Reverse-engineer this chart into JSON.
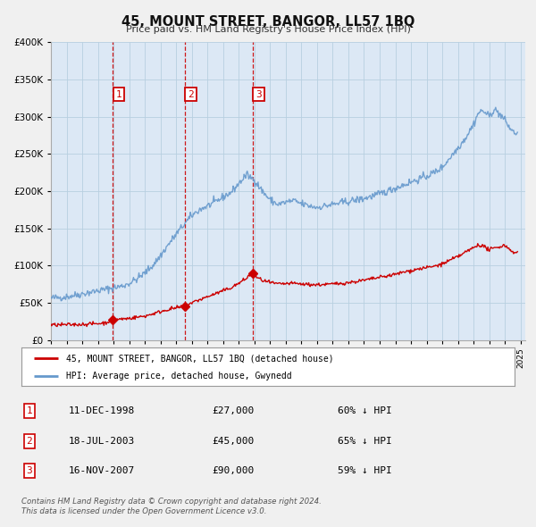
{
  "title": "45, MOUNT STREET, BANGOR, LL57 1BQ",
  "subtitle": "Price paid vs. HM Land Registry's House Price Index (HPI)",
  "legend_label_red": "45, MOUNT STREET, BANGOR, LL57 1BQ (detached house)",
  "legend_label_blue": "HPI: Average price, detached house, Gwynedd",
  "footer1": "Contains HM Land Registry data © Crown copyright and database right 2024.",
  "footer2": "This data is licensed under the Open Government Licence v3.0.",
  "ylim": [
    0,
    400000
  ],
  "ytick_values": [
    0,
    50000,
    100000,
    150000,
    200000,
    250000,
    300000,
    350000,
    400000
  ],
  "sale_points": [
    {
      "date_num": 1998.94,
      "price": 27000,
      "label": "1"
    },
    {
      "date_num": 2003.54,
      "price": 45000,
      "label": "2"
    },
    {
      "date_num": 2007.88,
      "price": 90000,
      "label": "3"
    }
  ],
  "table_rows": [
    {
      "num": "1",
      "date": "11-DEC-1998",
      "price": "£27,000",
      "pct": "60% ↓ HPI"
    },
    {
      "num": "2",
      "date": "18-JUL-2003",
      "price": "£45,000",
      "pct": "65% ↓ HPI"
    },
    {
      "num": "3",
      "date": "16-NOV-2007",
      "price": "£90,000",
      "pct": "59% ↓ HPI"
    }
  ],
  "bg_color": "#f0f0f0",
  "plot_bg_color": "#dce8f5",
  "red_color": "#cc0000",
  "blue_color": "#6699cc",
  "vline_color": "#cc0000",
  "grid_color": "#b8cfe0"
}
